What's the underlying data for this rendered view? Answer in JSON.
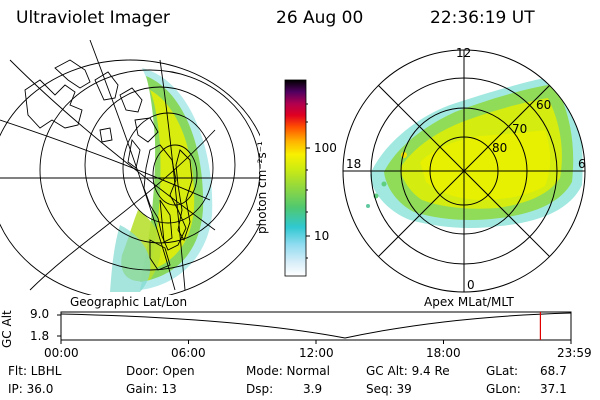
{
  "header": {
    "instrument": "Ultraviolet Imager",
    "date": "26 Aug 00",
    "time": "22:36:19 UT"
  },
  "left_panel": {
    "label": "Geographic Lat/Lon"
  },
  "right_panel": {
    "label": "Apex MLat/MLT",
    "mlt_labels": [
      "12",
      "18",
      "6",
      "0"
    ],
    "lat_labels": [
      "60",
      "70",
      "80"
    ]
  },
  "colorbar": {
    "label": "photon cm⁻²s⁻¹",
    "ticks": [
      "100",
      "10"
    ],
    "colors": [
      "#ffffff",
      "#e0f0ff",
      "#a0e0ff",
      "#40d0e0",
      "#30c8a0",
      "#60d060",
      "#a8e020",
      "#e0f000",
      "#ffe000",
      "#ff9000",
      "#ff3000",
      "#e00030",
      "#a00060",
      "#400060",
      "#000000"
    ]
  },
  "timeline": {
    "ylabel": "GC Alt",
    "yticks": [
      "9.0",
      "1.8"
    ],
    "xticks": [
      "00:00",
      "06:00",
      "12:00",
      "18:00",
      "23:59"
    ],
    "marker_fraction": 0.94
  },
  "info": {
    "flt": "Flt: LBHL",
    "ip": "IP: 36.0",
    "door": "Door: Open",
    "gain": "Gain: 13",
    "mode": "Mode: Normal",
    "dsp_label": "Dsp:",
    "dsp_value": "3.9",
    "gcalt": "GC Alt: 9.4 Re",
    "seq": "Seq: 39",
    "glat_label": "GLat:",
    "glat_value": "68.7",
    "glon_label": "GLon:",
    "glon_value": "37.1"
  }
}
